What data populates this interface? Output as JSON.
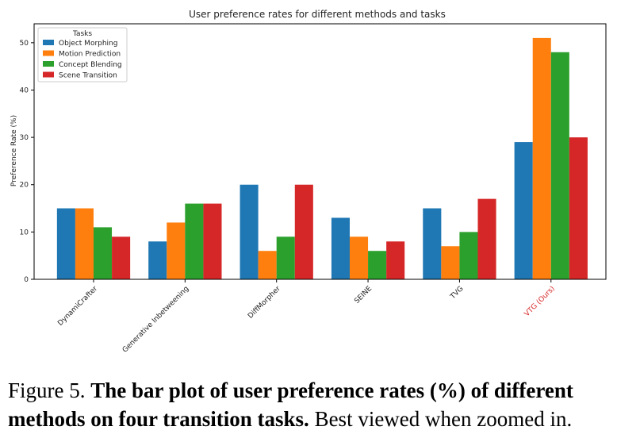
{
  "chart_data": {
    "type": "bar",
    "title": "User preference rates for different methods and tasks",
    "xlabel": "",
    "ylabel": "Preference Rate (%)",
    "ylim": [
      0,
      54
    ],
    "yticks": [
      0,
      10,
      20,
      30,
      40,
      50
    ],
    "categories": [
      "DynamiCrafter",
      "Generative Inbetweening",
      "DiffMorpher",
      "SEINE",
      "TVG",
      "VTG (Ours)"
    ],
    "highlight_category": "VTG (Ours)",
    "highlight_color": "#d62728",
    "legend": {
      "title": "Tasks",
      "placement": "top-left"
    },
    "series": [
      {
        "name": "Object Morphing",
        "color": "#1f77b4",
        "values": [
          15,
          8,
          20,
          13,
          15,
          29
        ]
      },
      {
        "name": "Motion Prediction",
        "color": "#ff7f0e",
        "values": [
          15,
          12,
          6,
          9,
          7,
          51
        ]
      },
      {
        "name": "Concept Blending",
        "color": "#2ca02c",
        "values": [
          11,
          16,
          9,
          6,
          10,
          48
        ]
      },
      {
        "name": "Scene Transition",
        "color": "#d62728",
        "values": [
          9,
          16,
          20,
          8,
          17,
          30
        ]
      }
    ]
  },
  "caption": {
    "prefix": "Figure 5. ",
    "bold": "The bar plot of user preference rates (%) of different methods on four transition tasks.",
    "rest": " Best viewed when zoomed in."
  }
}
